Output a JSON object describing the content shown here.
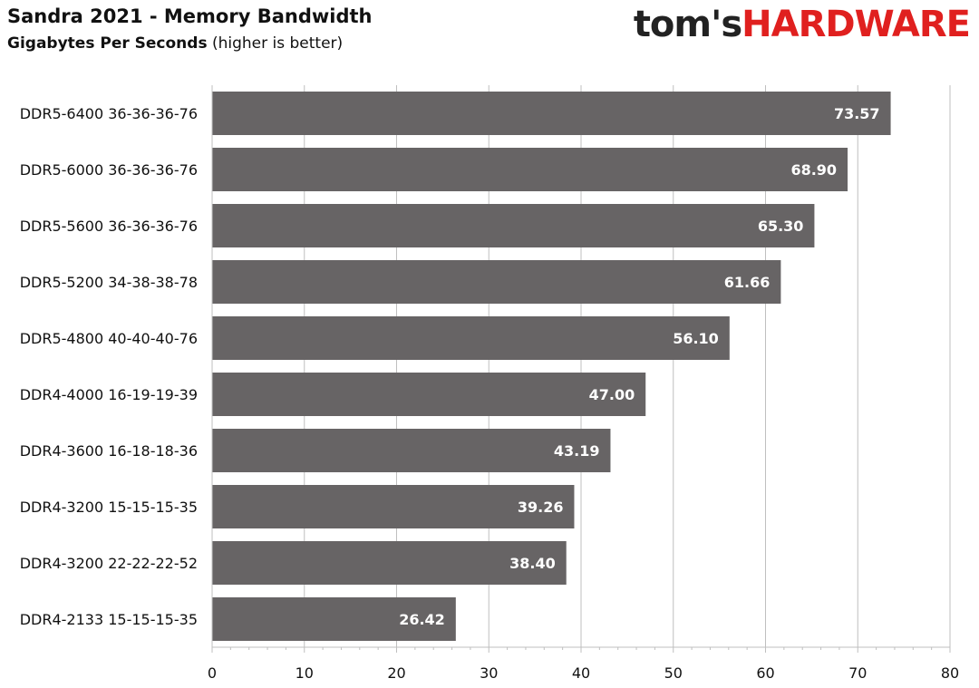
{
  "header": {
    "title": "Sandra 2021 - Memory Bandwidth",
    "subtitle_bold": "Gigabytes Per Seconds",
    "subtitle_rest": " (higher is better)"
  },
  "logo": {
    "part1": "tom's",
    "part2": "HARDWARE"
  },
  "colors": {
    "bar": "#676465",
    "grid": "#bfbfbf",
    "axis": "#bfbfbf",
    "logo_accent": "#e0201f"
  },
  "chart_data": {
    "type": "bar",
    "orientation": "horizontal",
    "title": "Sandra 2021 - Memory Bandwidth",
    "subtitle": "Gigabytes Per Seconds (higher is better)",
    "categories": [
      "DDR5-6400 36-36-36-76",
      "DDR5-6000 36-36-36-76",
      "DDR5-5600 36-36-36-76",
      "DDR5-5200 34-38-38-78",
      "DDR5-4800 40-40-40-76",
      "DDR4-4000 16-19-19-39",
      "DDR4-3600 16-18-18-36",
      "DDR4-3200 15-15-15-35",
      "DDR4-3200 22-22-22-52",
      "DDR4-2133 15-15-15-35"
    ],
    "values": [
      73.57,
      68.9,
      65.3,
      61.66,
      56.1,
      47.0,
      43.19,
      39.26,
      38.4,
      26.42
    ],
    "value_labels": [
      "73.57",
      "68.90",
      "65.30",
      "61.66",
      "56.10",
      "47.00",
      "43.19",
      "39.26",
      "38.40",
      "26.42"
    ],
    "xlim": [
      0,
      80
    ],
    "xticks": [
      0,
      10,
      20,
      30,
      40,
      50,
      60,
      70,
      80
    ],
    "grid": true,
    "legend": "none"
  }
}
